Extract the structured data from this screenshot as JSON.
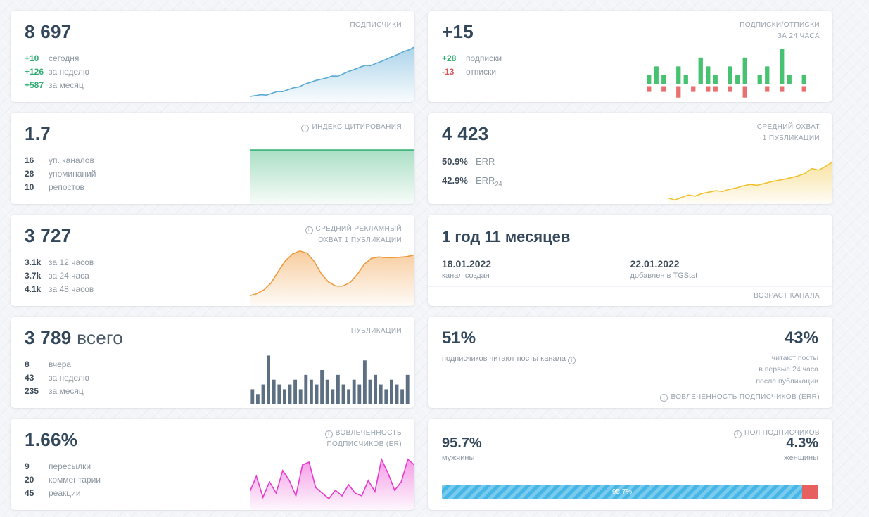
{
  "icons": {
    "info": "i"
  },
  "cards": {
    "subscribers": {
      "value": "8 697",
      "label": "ПОДПИСЧИКИ",
      "stats": [
        {
          "value": "+10",
          "label": "сегодня"
        },
        {
          "value": "+126",
          "label": "за неделю"
        },
        {
          "value": "+587",
          "label": "за месяц"
        }
      ]
    },
    "subs_unsubs": {
      "value": "+15",
      "label_line1": "ПОДПИСКИ/ОТПИСКИ",
      "label_line2": "ЗА 24 ЧАСА",
      "stats": [
        {
          "value": "+28",
          "label": "подписки"
        },
        {
          "value": "-13",
          "label": "отписки"
        }
      ]
    },
    "citation_index": {
      "value": "1.7",
      "label": "ИНДЕКС ЦИТИРОВАНИЯ",
      "stats": [
        {
          "value": "16",
          "label": "уп. каналов"
        },
        {
          "value": "28",
          "label": "упоминаний"
        },
        {
          "value": "10",
          "label": "репостов"
        }
      ]
    },
    "avg_reach": {
      "value": "4 423",
      "label_line1": "СРЕДНИЙ ОХВАТ",
      "label_line2": "1 ПУБЛИКАЦИИ",
      "stats": [
        {
          "value": "50.9%",
          "label": "ERR",
          "sub": ""
        },
        {
          "value": "42.9%",
          "label": "ERR",
          "sub": "24"
        }
      ]
    },
    "avg_ad_reach": {
      "value": "3 727",
      "label_line1": "СРЕДНИЙ РЕКЛАМНЫЙ",
      "label_line2": "ОХВАТ 1 ПУБЛИКАЦИИ",
      "stats": [
        {
          "value": "3.1k",
          "label": "за 12 часов"
        },
        {
          "value": "3.7k",
          "label": "за 24 часа"
        },
        {
          "value": "4.1k",
          "label": "за 48 часов"
        }
      ]
    },
    "channel_age": {
      "value": "1 год 11 месяцев",
      "label": "ВОЗРАСТ КАНАЛА",
      "created": {
        "date": "18.01.2022",
        "label": "канал создан"
      },
      "added": {
        "date": "22.01.2022",
        "label": "добавлен в TGStat"
      }
    },
    "publications": {
      "value": "3 789",
      "value_suffix": "всего",
      "label": "ПУБЛИКАЦИИ",
      "stats": [
        {
          "value": "8",
          "label": "вчера"
        },
        {
          "value": "43",
          "label": "за неделю"
        },
        {
          "value": "235",
          "label": "за месяц"
        }
      ]
    },
    "err": {
      "left_value": "51%",
      "left_label": "подписчиков читают посты канала",
      "right_value": "43%",
      "right_label_lines": [
        "читают посты",
        "в первые 24 часа",
        "после публикации"
      ],
      "footer_label": "ВОВЛЕЧЕННОСТЬ ПОДПИСЧИКОВ (ERR)"
    },
    "er": {
      "value": "1.66%",
      "label_line1": "ВОВЛЕЧЕННОСТЬ",
      "label_line2": "ПОДПИСЧИКОВ (ER)",
      "stats": [
        {
          "value": "9",
          "label": "пересылки"
        },
        {
          "value": "20",
          "label": "комментарии"
        },
        {
          "value": "45",
          "label": "реакции"
        }
      ]
    },
    "gender": {
      "label": "ПОЛ ПОДПИСЧИКОВ",
      "male": {
        "pct": "95.7%",
        "label": "мужчины"
      },
      "female": {
        "pct": "4.3%",
        "label": "женщины"
      },
      "bar_label": "95.7%"
    }
  },
  "chart_data": [
    {
      "id": "subscribers_trend",
      "type": "area",
      "title": "ПОДПИСЧИКИ — динамика",
      "color": "#58a9d6",
      "fill_opacity": 0.5,
      "ylim": [
        8020,
        8730
      ],
      "values": [
        8090,
        8098,
        8110,
        8106,
        8126,
        8150,
        8148,
        8172,
        8196,
        8206,
        8240,
        8262,
        8285,
        8300,
        8316,
        8340,
        8338,
        8366,
        8396,
        8420,
        8446,
        8470,
        8468,
        8496,
        8520,
        8550,
        8580,
        8606,
        8640,
        8662,
        8697
      ]
    },
    {
      "id": "subs_unsubs_bars",
      "type": "posneg-bar",
      "title": "ПОДПИСКИ/ОТПИСКИ ЗА 24 ЧАСА",
      "pos_color": "#46c271",
      "neg_color": "#ea7070",
      "pos": [
        1,
        2,
        1,
        0,
        2,
        1,
        0,
        3,
        2,
        1,
        0,
        2,
        1,
        3,
        0,
        1,
        2,
        0,
        4,
        1,
        0,
        1,
        0,
        0
      ],
      "neg": [
        1,
        0,
        1,
        0,
        2,
        0,
        1,
        0,
        1,
        1,
        0,
        1,
        0,
        2,
        0,
        0,
        1,
        0,
        1,
        0,
        0,
        1,
        0,
        0
      ]
    },
    {
      "id": "citation_trend",
      "type": "area",
      "title": "ИНДЕКС ЦИТИРОВАНИЯ",
      "color": "#36b374",
      "fill_opacity": 0.42,
      "ylim": [
        0,
        1.88
      ],
      "values": [
        1.7,
        1.7,
        1.7,
        1.7,
        1.7,
        1.7,
        1.7,
        1.7,
        1.7,
        1.7,
        1.7,
        1.7,
        1.7,
        1.7,
        1.7,
        1.7,
        1.7,
        1.7,
        1.7,
        1.7,
        1.7,
        1.7
      ]
    },
    {
      "id": "avg_reach_trend",
      "type": "area",
      "title": "СРЕДНИЙ ОХВАТ 1 ПУБЛИКАЦИИ",
      "color": "#f0c12e",
      "fill_opacity": 0.45,
      "ylim": [
        3150,
        4520
      ],
      "values": [
        3340,
        3270,
        3350,
        3420,
        3390,
        3470,
        3510,
        3555,
        3530,
        3600,
        3640,
        3700,
        3745,
        3720,
        3770,
        3820,
        3865,
        3905,
        3950,
        4005,
        4080,
        4230,
        4180,
        4290,
        4423
      ]
    },
    {
      "id": "avg_ad_reach_trend",
      "type": "area",
      "title": "СРЕДНИЙ РЕКЛАМНЫЙ ОХВАТ 1 ПУБЛИКАЦИИ",
      "color": "#f09a3e",
      "fill_opacity": 0.5,
      "ylim": [
        2650,
        4380
      ],
      "values": [
        2950,
        3010,
        3120,
        3320,
        3660,
        3960,
        4160,
        4240,
        4180,
        3940,
        3580,
        3340,
        3230,
        3225,
        3330,
        3560,
        3860,
        4030,
        4070,
        4050,
        4045,
        4060,
        4080,
        4130
      ]
    },
    {
      "id": "publications_bars",
      "type": "bar",
      "title": "ПУБЛИКАЦИИ",
      "color": "#5d6f83",
      "ylim": [
        0,
        10.5
      ],
      "values": [
        3,
        2,
        4,
        10,
        5,
        4,
        3,
        4,
        5,
        3,
        6,
        5,
        4,
        7,
        5,
        3,
        6,
        4,
        3,
        5,
        4,
        9,
        5,
        6,
        4,
        3,
        5,
        4,
        3,
        6
      ]
    },
    {
      "id": "er_trend",
      "type": "area",
      "title": "ВОВЛЕЧЕННОСТЬ ПОДПИСЧИКОВ (ER)",
      "color": "#e73bcd",
      "fill_opacity": 0.5,
      "ylim": [
        0.3,
        4.3
      ],
      "values": [
        1.6,
        2.7,
        1.2,
        2.3,
        1.5,
        3.1,
        2.4,
        1.3,
        3.5,
        3.7,
        1.9,
        1.5,
        1.1,
        1.7,
        1.3,
        2.1,
        1.5,
        1.3,
        2.4,
        1.6,
        3.9,
        2.9,
        1.7,
        2.3,
        3.9,
        3.5
      ]
    }
  ]
}
